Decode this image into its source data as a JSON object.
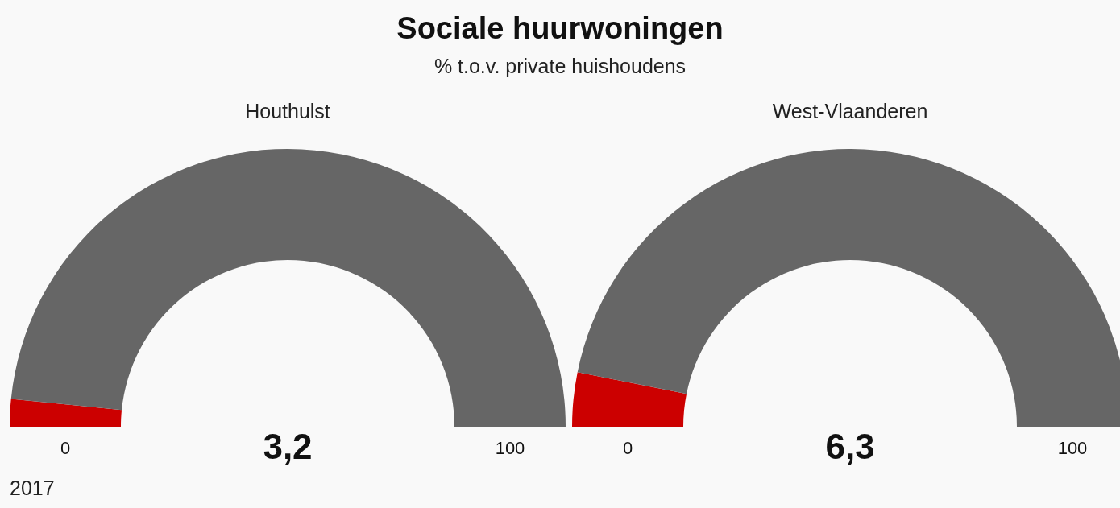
{
  "chart_data": [
    {
      "type": "other",
      "title": "Sociale huurwoningen",
      "subtitle": "% t.o.v. private huishoudens",
      "annotations": [
        "2017"
      ]
    },
    {
      "type": "donut",
      "title": "Houthulst",
      "categories": [
        null,
        null
      ],
      "values": [
        3.2,
        96.8
      ],
      "colors": [
        "#cc0000",
        "#666666"
      ],
      "annotations": [
        "0",
        "3,2",
        "100"
      ],
      "legend": false
    },
    {
      "type": "donut",
      "title": "West-Vlaanderen",
      "categories": [
        null,
        null
      ],
      "values": [
        6.3,
        93.7
      ],
      "colors": [
        "#cc0000",
        "#666666"
      ],
      "annotations": [
        "0",
        "6,3",
        "100"
      ],
      "legend": false
    }
  ]
}
